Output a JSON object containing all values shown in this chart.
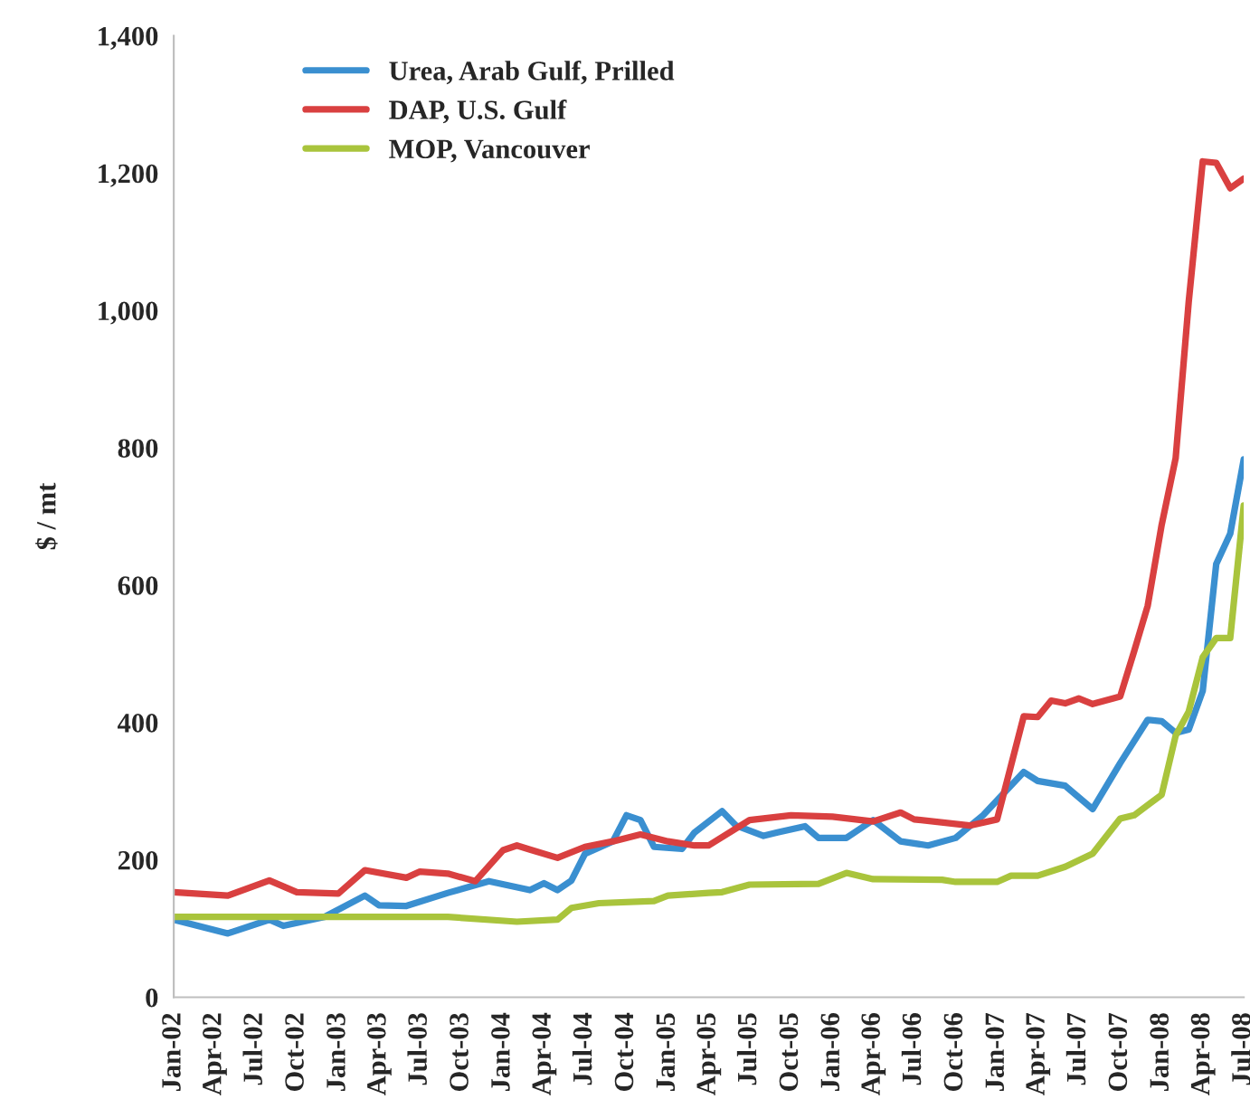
{
  "chart_data": {
    "type": "line",
    "ylabel": "$ / mt",
    "xlim": [
      "2002-01",
      "2008-07"
    ],
    "xticks": [
      {
        "value": "2002-01",
        "label": "Jan-02"
      },
      {
        "value": "2002-04",
        "label": "Apr-02"
      },
      {
        "value": "2002-07",
        "label": "Jul-02"
      },
      {
        "value": "2002-10",
        "label": "Oct-02"
      },
      {
        "value": "2003-01",
        "label": "Jan-03"
      },
      {
        "value": "2003-04",
        "label": "Apr-03"
      },
      {
        "value": "2003-07",
        "label": "Jul-03"
      },
      {
        "value": "2003-10",
        "label": "Oct-03"
      },
      {
        "value": "2004-01",
        "label": "Jan-04"
      },
      {
        "value": "2004-04",
        "label": "Apr-04"
      },
      {
        "value": "2004-07",
        "label": "Jul-04"
      },
      {
        "value": "2004-10",
        "label": "Oct-04"
      },
      {
        "value": "2005-01",
        "label": "Jan-05"
      },
      {
        "value": "2005-04",
        "label": "Apr-05"
      },
      {
        "value": "2005-07",
        "label": "Jul-05"
      },
      {
        "value": "2005-10",
        "label": "Oct-05"
      },
      {
        "value": "2006-01",
        "label": "Jan-06"
      },
      {
        "value": "2006-04",
        "label": "Apr-06"
      },
      {
        "value": "2006-07",
        "label": "Jul-06"
      },
      {
        "value": "2006-10",
        "label": "Oct-06"
      },
      {
        "value": "2007-01",
        "label": "Jan-07"
      },
      {
        "value": "2007-04",
        "label": "Apr-07"
      },
      {
        "value": "2007-07",
        "label": "Jul-07"
      },
      {
        "value": "2007-10",
        "label": "Oct-07"
      },
      {
        "value": "2008-01",
        "label": "Jan-08"
      },
      {
        "value": "2008-04",
        "label": "Apr-08"
      },
      {
        "value": "2008-07",
        "label": "Jul-08"
      }
    ],
    "ylim": [
      0,
      1400
    ],
    "yticks": [
      0,
      200,
      400,
      600,
      800,
      {
        "value": 1000,
        "label": "1,000"
      },
      {
        "value": 1200,
        "label": "1,200"
      },
      {
        "value": 1400,
        "label": "1,400"
      }
    ],
    "grid": false,
    "legend": "top left",
    "series": [
      {
        "name": "Urea, Arab Gulf, Prilled",
        "color": "#3a8fd0",
        "x": [
          "2002-01",
          "2002-05",
          "2002-08",
          "2002-09",
          "2002-12",
          "2003-03",
          "2003-04",
          "2003-06",
          "2003-09",
          "2003-12",
          "2004-03",
          "2004-04",
          "2004-05",
          "2004-06",
          "2004-07",
          "2004-09",
          "2004-10",
          "2004-11",
          "2004-12",
          "2005-02",
          "2005-03",
          "2005-05",
          "2005-06",
          "2005-08",
          "2005-09",
          "2005-11",
          "2005-12",
          "2006-02",
          "2006-04",
          "2006-06",
          "2006-08",
          "2006-10",
          "2006-12",
          "2007-03",
          "2007-04",
          "2007-06",
          "2007-08",
          "2007-09",
          "2007-10",
          "2007-12",
          "2008-01",
          "2008-02",
          "2008-03",
          "2008-04",
          "2008-05",
          "2008-06",
          "2008-07"
        ],
        "values": [
          113,
          93,
          113,
          104,
          117,
          148,
          134,
          133,
          152,
          169,
          156,
          166,
          156,
          170,
          209,
          227,
          265,
          258,
          219,
          216,
          240,
          271,
          250,
          235,
          240,
          249,
          232,
          232,
          258,
          227,
          221,
          232,
          265,
          328,
          315,
          308,
          274,
          308,
          341,
          404,
          402,
          385,
          390,
          446,
          631,
          675,
          783
        ]
      },
      {
        "name": "DAP, U.S. Gulf",
        "color": "#d94040",
        "x": [
          "2002-01",
          "2002-05",
          "2002-08",
          "2002-10",
          "2003-01",
          "2003-03",
          "2003-06",
          "2003-07",
          "2003-09",
          "2003-11",
          "2004-01",
          "2004-02",
          "2004-03",
          "2004-05",
          "2004-07",
          "2004-09",
          "2004-11",
          "2005-01",
          "2005-03",
          "2005-04",
          "2005-07",
          "2005-10",
          "2006-01",
          "2006-04",
          "2006-06",
          "2006-07",
          "2006-11",
          "2007-01",
          "2007-03",
          "2007-04",
          "2007-05",
          "2007-06",
          "2007-07",
          "2007-08",
          "2007-10",
          "2007-11",
          "2007-12",
          "2008-01",
          "2008-02",
          "2008-03",
          "2008-04",
          "2008-05",
          "2008-06",
          "2008-07"
        ],
        "values": [
          153,
          148,
          170,
          153,
          151,
          185,
          174,
          183,
          180,
          169,
          214,
          221,
          215,
          203,
          219,
          227,
          237,
          227,
          221,
          221,
          258,
          265,
          263,
          256,
          269,
          259,
          250,
          259,
          409,
          408,
          432,
          428,
          435,
          427,
          438,
          504,
          570,
          688,
          785,
          1013,
          1217,
          1215,
          1178,
          1192
        ]
      },
      {
        "name": "MOP, Vancouver",
        "color": "#a9c43c",
        "x": [
          "2002-01",
          "2003-09",
          "2004-02",
          "2004-05",
          "2004-06",
          "2004-08",
          "2004-12",
          "2005-01",
          "2005-04",
          "2005-05",
          "2005-07",
          "2005-12",
          "2006-02",
          "2006-04",
          "2006-09",
          "2006-10",
          "2007-01",
          "2007-02",
          "2007-04",
          "2007-06",
          "2007-08",
          "2007-09",
          "2007-10",
          "2007-11",
          "2008-01",
          "2008-02",
          "2008-03",
          "2008-04",
          "2008-05",
          "2008-06",
          "2008-07"
        ],
        "values": [
          117,
          117,
          110,
          113,
          130,
          137,
          140,
          148,
          152,
          153,
          164,
          165,
          181,
          172,
          171,
          168,
          168,
          177,
          177,
          190,
          209,
          235,
          260,
          265,
          295,
          381,
          416,
          495,
          523,
          523,
          716
        ]
      }
    ]
  }
}
